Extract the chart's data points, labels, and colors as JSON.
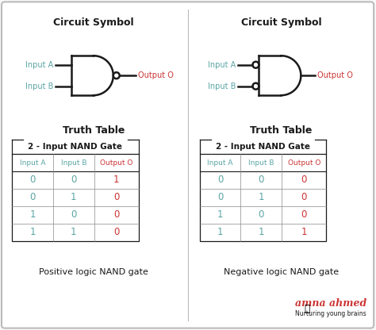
{
  "bg_color": "#f8f8f8",
  "border_color": "#bbbbbb",
  "dark_color": "#1a1a1a",
  "teal_color": "#5ba4a4",
  "red_color": "#cc3333",
  "gray_color": "#888888",
  "circuit_title": "Circuit Symbol",
  "truth_title": "Truth Table",
  "table_title": "2 - Input NAND Gate",
  "col_headers": [
    "Input A",
    "Input B",
    "Output O"
  ],
  "left_table_data": [
    [
      "0",
      "0",
      "1"
    ],
    [
      "0",
      "1",
      "0"
    ],
    [
      "1",
      "0",
      "0"
    ],
    [
      "1",
      "1",
      "0"
    ]
  ],
  "right_table_data": [
    [
      "0",
      "0",
      "0"
    ],
    [
      "0",
      "1",
      "0"
    ],
    [
      "1",
      "0",
      "0"
    ],
    [
      "1",
      "1",
      "1"
    ]
  ],
  "left_caption": "Positive logic NAND gate",
  "right_caption": "Negative logic NAND gate",
  "brand_name": "amna ahmed",
  "brand_sub": "Nurturing young brains"
}
